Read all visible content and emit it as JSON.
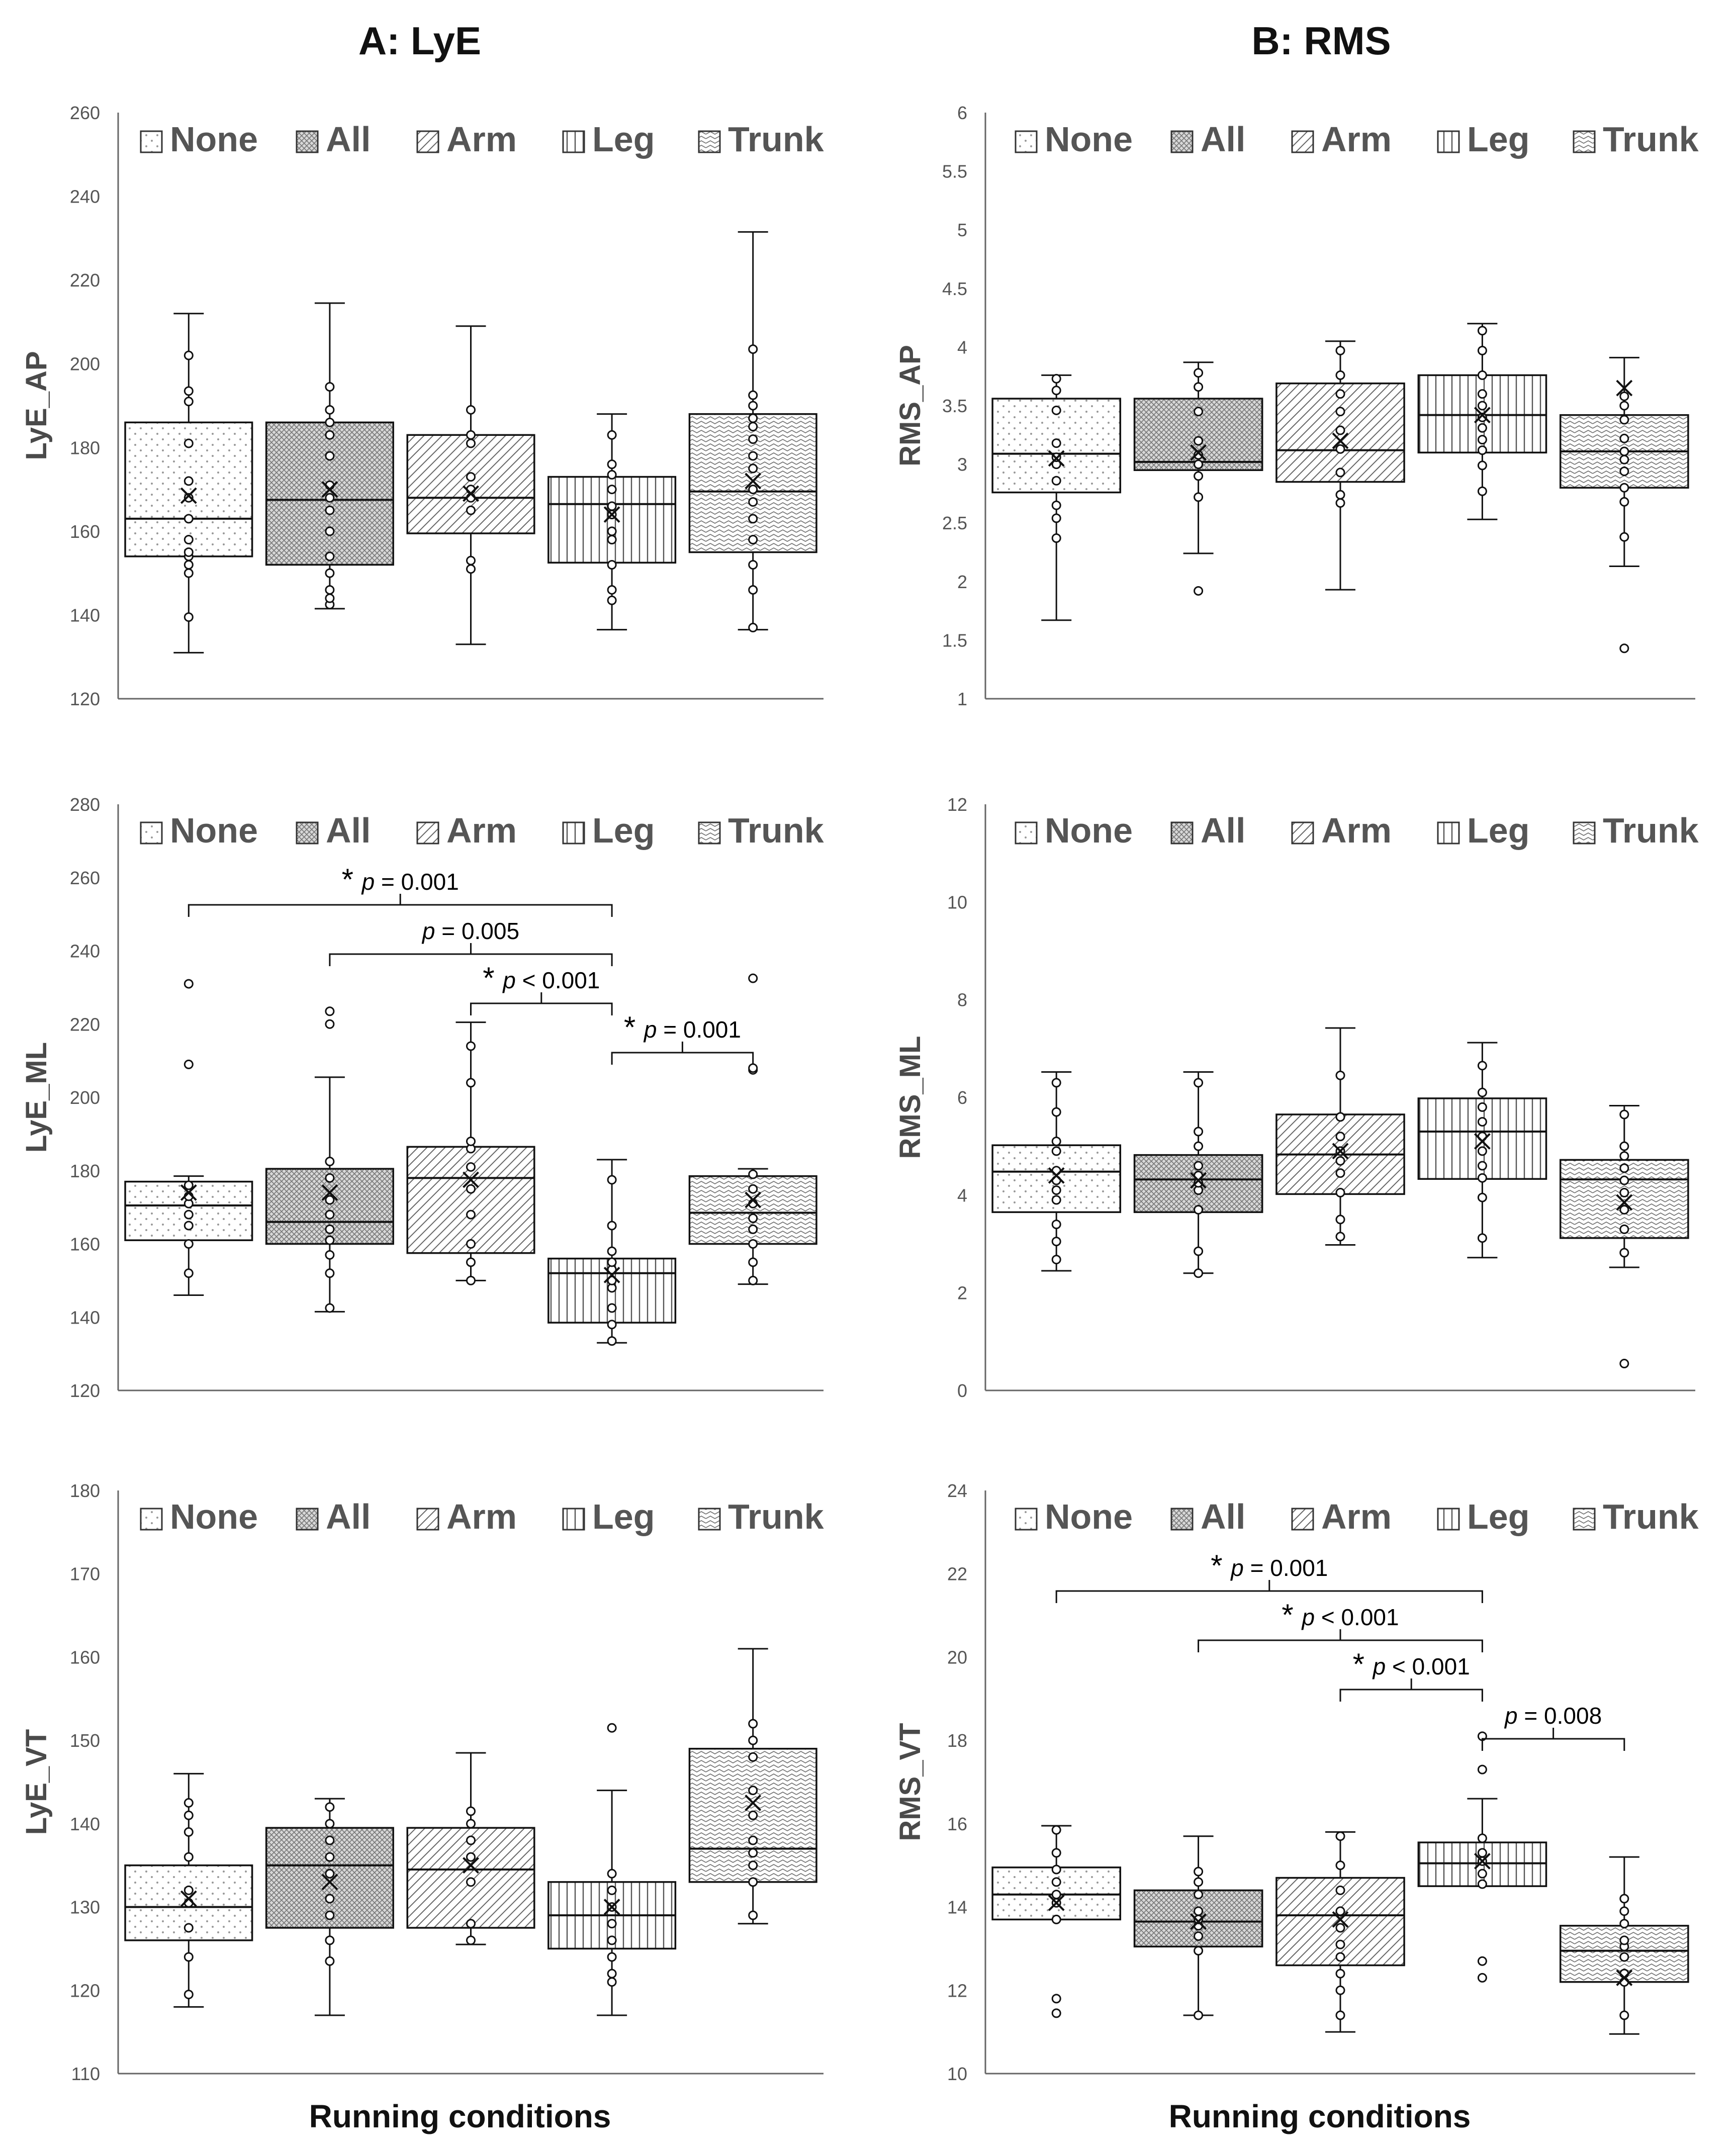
{
  "figure": {
    "col_titles": [
      "A: LyE",
      "B: RMS"
    ],
    "xlabel": "Running conditions"
  },
  "chart_data": [
    {
      "id": "lye-ap",
      "type": "boxplot",
      "ylabel": "LyE_AP",
      "ylim": [
        120,
        260
      ],
      "yticks": [
        120,
        140,
        160,
        180,
        200,
        220,
        240,
        260
      ],
      "categories": [
        "None",
        "All",
        "Arm",
        "Leg",
        "Trunk"
      ],
      "legend": [
        "None",
        "All",
        "Arm",
        "Leg",
        "Trunk"
      ],
      "legend_position": "top",
      "boxes": [
        {
          "min": 131,
          "q1": 154,
          "median": 163,
          "q3": 186,
          "max": 212,
          "mean": 168.5,
          "points": [
            139.5,
            150,
            152,
            154,
            155,
            158,
            163,
            168,
            172,
            181,
            191,
            193.5,
            202
          ]
        },
        {
          "min": 141.5,
          "q1": 152,
          "median": 167.5,
          "q3": 186,
          "max": 214.5,
          "mean": 170,
          "points": [
            142.5,
            144,
            146,
            150,
            154,
            160,
            165,
            168,
            171,
            178,
            183,
            186,
            189,
            194.5
          ]
        },
        {
          "min": 133,
          "q1": 159.5,
          "median": 168,
          "q3": 183,
          "max": 209,
          "mean": 169,
          "points": [
            151,
            153,
            165,
            168,
            170,
            173,
            181,
            183,
            189
          ]
        },
        {
          "min": 136.5,
          "q1": 152.5,
          "median": 166.5,
          "q3": 173,
          "max": 188,
          "mean": 164,
          "points": [
            143.5,
            146,
            152,
            158,
            160,
            164,
            166,
            170,
            173.5,
            176,
            183
          ]
        },
        {
          "min": 136.5,
          "q1": 155,
          "median": 169.5,
          "q3": 188,
          "max": 231.5,
          "mean": 172,
          "points": [
            137,
            146,
            152,
            158,
            163,
            167,
            170,
            175,
            178,
            182,
            185,
            187,
            190,
            192.5,
            203.5
          ]
        }
      ],
      "annotations": []
    },
    {
      "id": "rms-ap",
      "type": "boxplot",
      "ylabel": "RMS_AP",
      "ylim": [
        1,
        6
      ],
      "yticks": [
        1,
        1.5,
        2,
        2.5,
        3,
        3.5,
        4,
        4.5,
        5,
        5.5,
        6
      ],
      "categories": [
        "None",
        "All",
        "Arm",
        "Leg",
        "Trunk"
      ],
      "legend": [
        "None",
        "All",
        "Arm",
        "Leg",
        "Trunk"
      ],
      "legend_position": "top",
      "boxes": [
        {
          "min": 1.67,
          "q1": 2.76,
          "median": 3.09,
          "q3": 3.56,
          "max": 3.76,
          "mean": 3.05,
          "points": [
            2.37,
            2.54,
            2.65,
            2.86,
            3.0,
            3.06,
            3.18,
            3.46,
            3.63,
            3.73
          ]
        },
        {
          "min": 2.24,
          "q1": 2.95,
          "median": 3.02,
          "q3": 3.56,
          "max": 3.87,
          "mean": 3.1,
          "points": [
            1.92,
            2.72,
            2.9,
            3.0,
            3.08,
            3.2,
            3.45,
            3.66,
            3.78
          ]
        },
        {
          "min": 1.93,
          "q1": 2.85,
          "median": 3.12,
          "q3": 3.69,
          "max": 4.05,
          "mean": 3.2,
          "points": [
            2.67,
            2.74,
            2.93,
            3.13,
            3.29,
            3.45,
            3.6,
            3.76,
            3.97
          ]
        },
        {
          "min": 2.53,
          "q1": 3.1,
          "median": 3.42,
          "q3": 3.76,
          "max": 4.2,
          "mean": 3.42,
          "points": [
            2.77,
            2.99,
            3.12,
            3.21,
            3.31,
            3.4,
            3.5,
            3.6,
            3.76,
            3.97,
            4.14
          ]
        },
        {
          "min": 2.13,
          "q1": 2.8,
          "median": 3.11,
          "q3": 3.42,
          "max": 3.91,
          "mean": 3.65,
          "points": [
            1.43,
            2.38,
            2.68,
            2.8,
            2.94,
            3.04,
            3.11,
            3.22,
            3.38,
            3.5,
            3.58
          ]
        }
      ],
      "annotations": []
    },
    {
      "id": "lye-ml",
      "type": "boxplot",
      "ylabel": "LyE_ML",
      "ylim": [
        120,
        280
      ],
      "yticks": [
        120,
        140,
        160,
        180,
        200,
        220,
        240,
        260,
        280
      ],
      "categories": [
        "None",
        "All",
        "Arm",
        "Leg",
        "Trunk"
      ],
      "legend": [
        "None",
        "All",
        "Arm",
        "Leg",
        "Trunk"
      ],
      "legend_position": "top",
      "boxes": [
        {
          "min": 146,
          "q1": 161,
          "median": 170.5,
          "q3": 177,
          "max": 178.5,
          "mean": 174,
          "points": [
            152,
            160,
            165,
            168,
            171,
            173,
            176,
            209,
            231
          ]
        },
        {
          "min": 141.5,
          "q1": 160,
          "median": 166,
          "q3": 180.5,
          "max": 205.5,
          "mean": 174,
          "points": [
            142.5,
            152,
            157,
            161,
            164,
            168,
            172,
            178,
            182.5,
            220,
            223.5
          ]
        },
        {
          "min": 150,
          "q1": 157.5,
          "median": 178,
          "q3": 186.5,
          "max": 220.5,
          "mean": 177.5,
          "points": [
            150,
            155,
            160,
            168,
            175,
            181,
            186,
            188,
            204,
            214
          ]
        },
        {
          "min": 133,
          "q1": 138.5,
          "median": 152,
          "q3": 156,
          "max": 183,
          "mean": 151.5,
          "points": [
            133.5,
            138,
            142.5,
            148,
            150,
            153,
            155,
            158,
            165,
            177.5
          ]
        },
        {
          "min": 149,
          "q1": 160,
          "median": 168.5,
          "q3": 178.5,
          "max": 180.5,
          "mean": 172,
          "points": [
            150,
            155,
            160,
            164,
            167,
            171,
            175,
            179,
            207.5,
            208,
            232.5
          ]
        }
      ],
      "annotations": [
        {
          "from": 0,
          "to": 3,
          "star": true,
          "label": "p",
          "value": "= 0.001"
        },
        {
          "from": 1,
          "to": 3,
          "star": false,
          "label": "p",
          "value": "= 0.005"
        },
        {
          "from": 2,
          "to": 3,
          "star": true,
          "label": "p",
          "value": "< 0.001"
        },
        {
          "from": 3,
          "to": 4,
          "star": true,
          "label": "p",
          "value": "= 0.001"
        }
      ]
    },
    {
      "id": "rms-ml",
      "type": "boxplot",
      "ylabel": "RMS_ML",
      "ylim": [
        0,
        12
      ],
      "yticks": [
        0,
        2,
        4,
        6,
        8,
        10,
        12
      ],
      "categories": [
        "None",
        "All",
        "Arm",
        "Leg",
        "Trunk"
      ],
      "legend": [
        "None",
        "All",
        "Arm",
        "Leg",
        "Trunk"
      ],
      "legend_position": "top",
      "boxes": [
        {
          "min": 2.45,
          "q1": 3.65,
          "median": 4.48,
          "q3": 5.02,
          "max": 6.52,
          "mean": 4.4,
          "points": [
            2.68,
            3.05,
            3.4,
            3.9,
            4.1,
            4.3,
            4.5,
            4.9,
            5.1,
            5.7,
            6.3
          ]
        },
        {
          "min": 2.4,
          "q1": 3.65,
          "median": 4.32,
          "q3": 4.82,
          "max": 6.52,
          "mean": 4.3,
          "points": [
            2.4,
            2.85,
            3.7,
            4.1,
            4.25,
            4.4,
            4.6,
            5.0,
            5.3,
            6.3
          ]
        },
        {
          "min": 2.98,
          "q1": 4.02,
          "median": 4.83,
          "q3": 5.65,
          "max": 7.42,
          "mean": 4.9,
          "points": [
            3.15,
            3.5,
            4.05,
            4.45,
            4.7,
            4.9,
            5.2,
            5.6,
            6.45
          ]
        },
        {
          "min": 2.72,
          "q1": 4.33,
          "median": 5.3,
          "q3": 5.98,
          "max": 7.12,
          "mean": 5.1,
          "points": [
            3.12,
            3.95,
            4.35,
            4.6,
            4.9,
            5.2,
            5.5,
            5.8,
            6.1,
            6.65
          ]
        },
        {
          "min": 2.52,
          "q1": 3.12,
          "median": 4.32,
          "q3": 4.72,
          "max": 5.83,
          "mean": 3.85,
          "points": [
            0.55,
            2.82,
            3.3,
            3.7,
            4.05,
            4.3,
            4.55,
            4.8,
            5.0,
            5.65
          ]
        }
      ],
      "annotations": []
    },
    {
      "id": "lye-vt",
      "type": "boxplot",
      "ylabel": "LyE_VT",
      "ylim": [
        110,
        180
      ],
      "yticks": [
        110,
        120,
        130,
        140,
        150,
        160,
        170,
        180
      ],
      "categories": [
        "None",
        "All",
        "Arm",
        "Leg",
        "Trunk"
      ],
      "legend": [
        "None",
        "All",
        "Arm",
        "Leg",
        "Trunk"
      ],
      "legend_position": "top",
      "boxes": [
        {
          "min": 118,
          "q1": 126,
          "median": 130,
          "q3": 135,
          "max": 146,
          "mean": 131,
          "points": [
            119.5,
            124,
            127.5,
            130.5,
            132,
            136,
            139,
            141,
            142.5
          ]
        },
        {
          "min": 117,
          "q1": 127.5,
          "median": 135,
          "q3": 139.5,
          "max": 143,
          "mean": 133,
          "points": [
            123.5,
            126,
            129,
            131,
            134,
            136,
            138,
            140,
            142
          ]
        },
        {
          "min": 125.5,
          "q1": 127.5,
          "median": 134.5,
          "q3": 139.5,
          "max": 148.5,
          "mean": 135,
          "points": [
            126,
            128,
            133,
            136,
            138,
            140,
            141.5
          ]
        },
        {
          "min": 117,
          "q1": 125,
          "median": 129,
          "q3": 133,
          "max": 144,
          "mean": 130,
          "points": [
            121,
            122,
            124,
            126,
            128,
            130,
            132,
            134,
            151.5
          ]
        },
        {
          "min": 128,
          "q1": 133,
          "median": 137,
          "q3": 149,
          "max": 161,
          "mean": 142.5,
          "points": [
            129,
            133,
            135,
            136.5,
            138,
            141,
            144,
            148,
            150,
            152
          ]
        }
      ],
      "annotations": []
    },
    {
      "id": "rms-vt",
      "type": "boxplot",
      "ylabel": "RMS_VT",
      "ylim": [
        10,
        24
      ],
      "yticks": [
        10,
        12,
        14,
        16,
        18,
        20,
        22,
        24
      ],
      "categories": [
        "None",
        "All",
        "Arm",
        "Leg",
        "Trunk"
      ],
      "legend": [
        "None",
        "All",
        "Arm",
        "Leg",
        "Trunk"
      ],
      "legend_position": "top",
      "boxes": [
        {
          "min": 13.7,
          "q1": 13.7,
          "median": 14.3,
          "q3": 14.95,
          "max": 15.95,
          "mean": 14.1,
          "points": [
            11.45,
            11.8,
            13.7,
            14.1,
            14.3,
            14.6,
            14.9,
            15.3,
            15.85
          ]
        },
        {
          "min": 11.4,
          "q1": 13.05,
          "median": 13.65,
          "q3": 14.4,
          "max": 15.7,
          "mean": 13.65,
          "points": [
            11.4,
            12.95,
            13.3,
            13.55,
            13.7,
            13.9,
            14.3,
            14.6,
            14.85
          ]
        },
        {
          "min": 11.0,
          "q1": 12.6,
          "median": 13.8,
          "q3": 14.7,
          "max": 15.8,
          "mean": 13.7,
          "points": [
            11.4,
            12.0,
            12.4,
            12.8,
            13.1,
            13.5,
            13.9,
            14.4,
            15.0,
            15.7
          ]
        },
        {
          "min": 14.5,
          "q1": 14.5,
          "median": 15.05,
          "q3": 15.55,
          "max": 16.6,
          "mean": 15.1,
          "points": [
            12.3,
            12.7,
            14.55,
            14.8,
            15.1,
            15.3,
            15.65,
            17.3,
            18.1
          ]
        },
        {
          "min": 10.95,
          "q1": 12.2,
          "median": 12.95,
          "q3": 13.55,
          "max": 15.2,
          "mean": 12.3,
          "points": [
            11.4,
            12.2,
            12.4,
            12.8,
            13.05,
            13.2,
            13.6,
            13.9,
            14.2
          ]
        }
      ],
      "annotations": [
        {
          "from": 0,
          "to": 3,
          "star": true,
          "label": "p",
          "value": "= 0.001"
        },
        {
          "from": 1,
          "to": 3,
          "star": true,
          "label": "p",
          "value": "< 0.001"
        },
        {
          "from": 2,
          "to": 3,
          "star": true,
          "label": "p",
          "value": "< 0.001"
        },
        {
          "from": 3,
          "to": 4,
          "star": false,
          "label": "p",
          "value": "= 0.008"
        }
      ]
    }
  ]
}
